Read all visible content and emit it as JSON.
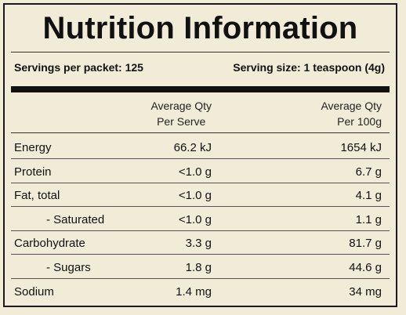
{
  "title": "Nutrition Information",
  "servings_per_packet": "Servings per packet: 125",
  "serving_size": "Serving size: 1 teaspoon (4g)",
  "columns": {
    "per_serve": [
      "Average Qty",
      "Per Serve"
    ],
    "per_100g": [
      "Average Qty",
      "Per 100g"
    ]
  },
  "rows": [
    {
      "name": "Energy",
      "per_serve": "66.2 kJ",
      "per_100g": "1654 kJ",
      "indent": false
    },
    {
      "name": "Protein",
      "per_serve": "<1.0 g",
      "per_100g": "6.7 g",
      "indent": false
    },
    {
      "name": "Fat, total",
      "per_serve": "<1.0 g",
      "per_100g": "4.1 g",
      "indent": false
    },
    {
      "name": "- Saturated",
      "per_serve": "<1.0 g",
      "per_100g": "1.1 g",
      "indent": true
    },
    {
      "name": "Carbohydrate",
      "per_serve": "3.3 g",
      "per_100g": "81.7 g",
      "indent": false
    },
    {
      "name": "- Sugars",
      "per_serve": "1.8 g",
      "per_100g": "44.6 g",
      "indent": true
    },
    {
      "name": "Sodium",
      "per_serve": "1.4 mg",
      "per_100g": "34 mg",
      "indent": false
    }
  ]
}
